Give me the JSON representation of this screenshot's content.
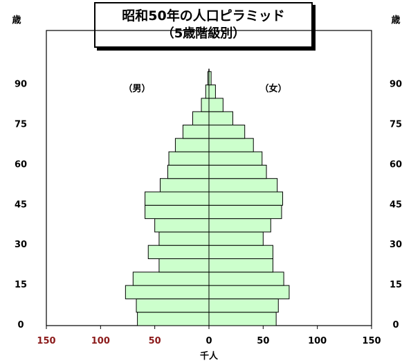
{
  "chart_data": {
    "type": "bar",
    "subtype": "population-pyramid",
    "title": "昭和50年の人口ピラミッド",
    "subtitle": "（5歳階級別）",
    "age_unit_label": "歳",
    "xlabel": "千人",
    "male_label": "（男）",
    "female_label": "（女）",
    "age_groups": [
      "0-4",
      "5-9",
      "10-14",
      "15-19",
      "20-24",
      "25-29",
      "30-34",
      "35-39",
      "40-44",
      "45-49",
      "50-54",
      "55-59",
      "60-64",
      "65-69",
      "70-74",
      "75-79",
      "80-84",
      "85-89",
      "90+"
    ],
    "series": [
      {
        "name": "男",
        "values": [
          66,
          67,
          77,
          70,
          46,
          56,
          46,
          50,
          59,
          59,
          45,
          38,
          37,
          31,
          24,
          15,
          7,
          3,
          1
        ]
      },
      {
        "name": "女",
        "values": [
          62,
          64,
          74,
          69,
          59,
          59,
          50,
          57,
          67,
          68,
          63,
          53,
          49,
          41,
          33,
          22,
          13,
          6,
          2
        ]
      }
    ],
    "y_ticks": [
      "0",
      "15",
      "30",
      "45",
      "60",
      "75",
      "90"
    ],
    "x_ticks": [
      {
        "label": "150",
        "value": 150,
        "side": "male"
      },
      {
        "label": "100",
        "value": 100,
        "side": "male"
      },
      {
        "label": "50",
        "value": 50,
        "side": "male"
      },
      {
        "label": "0",
        "value": 0,
        "side": "center"
      },
      {
        "label": "50",
        "value": 50,
        "side": "female"
      },
      {
        "label": "100",
        "value": 100,
        "side": "female"
      },
      {
        "label": "150",
        "value": 150,
        "side": "female"
      }
    ],
    "xlim": [
      -150,
      150
    ],
    "ylim": [
      0,
      95
    ],
    "bar_color": "#ccffcc",
    "bar_edge_color": "#000000",
    "male_tick_color": "#8b1a1a",
    "female_tick_color": "#000000",
    "grid": false
  }
}
